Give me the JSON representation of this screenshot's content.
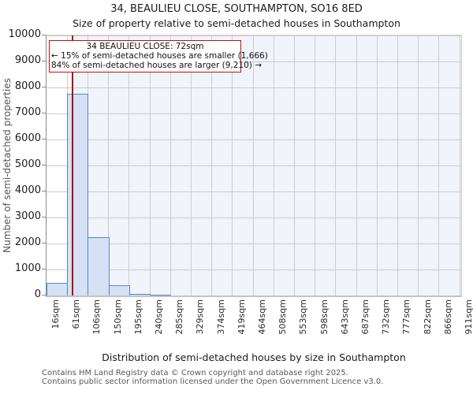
{
  "header": {
    "title": "34, BEAULIEU CLOSE, SOUTHAMPTON, SO16 8ED",
    "subtitle": "Size of property relative to semi-detached houses in Southampton"
  },
  "chart_data": {
    "type": "bar",
    "title": "34, BEAULIEU CLOSE, SOUTHAMPTON, SO16 8ED",
    "subtitle": "Size of property relative to semi-detached houses in Southampton",
    "xlabel": "Distribution of semi-detached houses by size in Southampton",
    "ylabel": "Number of semi-detached properties",
    "ylim": [
      0,
      10000
    ],
    "ytick_step": 1000,
    "grid": true,
    "bin_edges_sqm": [
      16,
      61,
      106,
      150,
      195,
      240,
      285,
      329,
      374,
      419,
      464,
      508,
      553,
      598,
      643,
      687,
      732,
      777,
      822,
      866,
      911
    ],
    "x_tick_labels": [
      "16sqm",
      "61sqm",
      "106sqm",
      "150sqm",
      "195sqm",
      "240sqm",
      "285sqm",
      "329sqm",
      "374sqm",
      "419sqm",
      "464sqm",
      "508sqm",
      "553sqm",
      "598sqm",
      "643sqm",
      "687sqm",
      "732sqm",
      "777sqm",
      "822sqm",
      "866sqm",
      "911sqm"
    ],
    "values": [
      500,
      7750,
      2250,
      400,
      70,
      20,
      0,
      0,
      0,
      0,
      0,
      0,
      0,
      0,
      0,
      0,
      0,
      0,
      0,
      0
    ],
    "marker": {
      "label": "34 BEAULIEU CLOSE",
      "value_sqm": 72,
      "smaller_pct": "15%",
      "smaller_count": "1,666",
      "larger_pct": "84%",
      "larger_count": "9,210",
      "color": "#a81414"
    },
    "annotation": {
      "line1": "34 BEAULIEU CLOSE: 72sqm",
      "line2": "← 15% of semi-detached houses are smaller (1,666)",
      "line3": "84% of semi-detached houses are larger (9,210) →"
    },
    "colors": {
      "bar_fill": "#d5e1f4",
      "bar_border": "#5b87c5",
      "shaded_region": "#f1f4fb",
      "gridline": "#cccccc",
      "marker_line": "#a81414",
      "annotation_border": "#bb1111"
    }
  },
  "footer": {
    "line1": "Contains HM Land Registry data © Crown copyright and database right 2025.",
    "line2": "Contains public sector information licensed under the Open Government Licence v3.0."
  }
}
